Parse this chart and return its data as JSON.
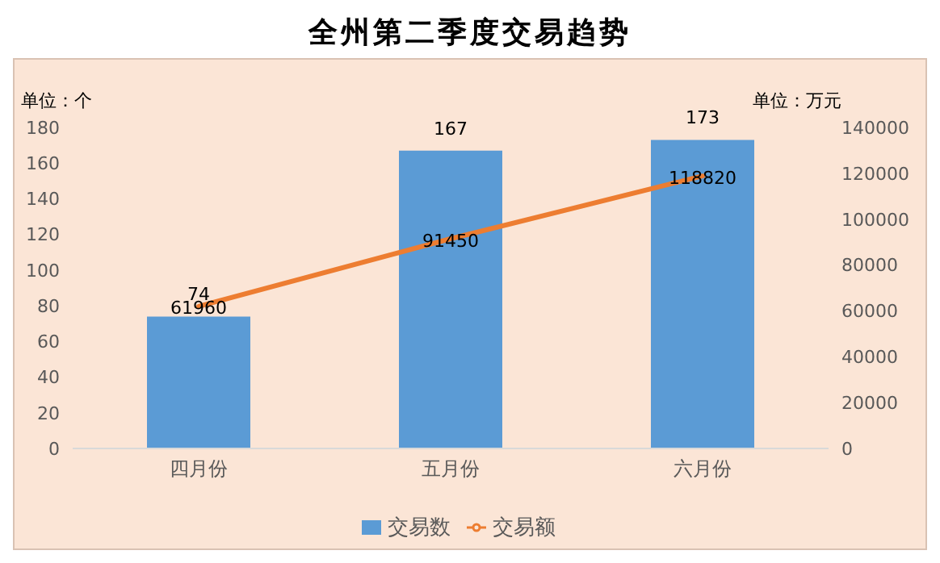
{
  "chart_data": {
    "type": "bar",
    "title": "全州第二季度交易趋势",
    "ylabel": "单位：个",
    "y2label": "单位：万元",
    "categories": [
      "四月份",
      "五月份",
      "六月份"
    ],
    "series": [
      {
        "name": "交易数",
        "color": "#5b9bd5",
        "values": [
          74,
          167,
          173
        ]
      },
      {
        "name": "交易额",
        "type": "line",
        "axis": "y2",
        "color": "#ed7d31",
        "values": [
          61960,
          91450,
          118820
        ]
      }
    ],
    "ylim": [
      0,
      180
    ],
    "yticks": [
      0,
      20,
      40,
      60,
      80,
      100,
      120,
      140,
      160,
      180
    ],
    "y2lim": [
      0,
      140000
    ],
    "y2ticks": [
      0,
      20000,
      40000,
      60000,
      80000,
      100000,
      120000,
      140000
    ],
    "data_labels": true,
    "legend": "bottom",
    "grid": false
  }
}
